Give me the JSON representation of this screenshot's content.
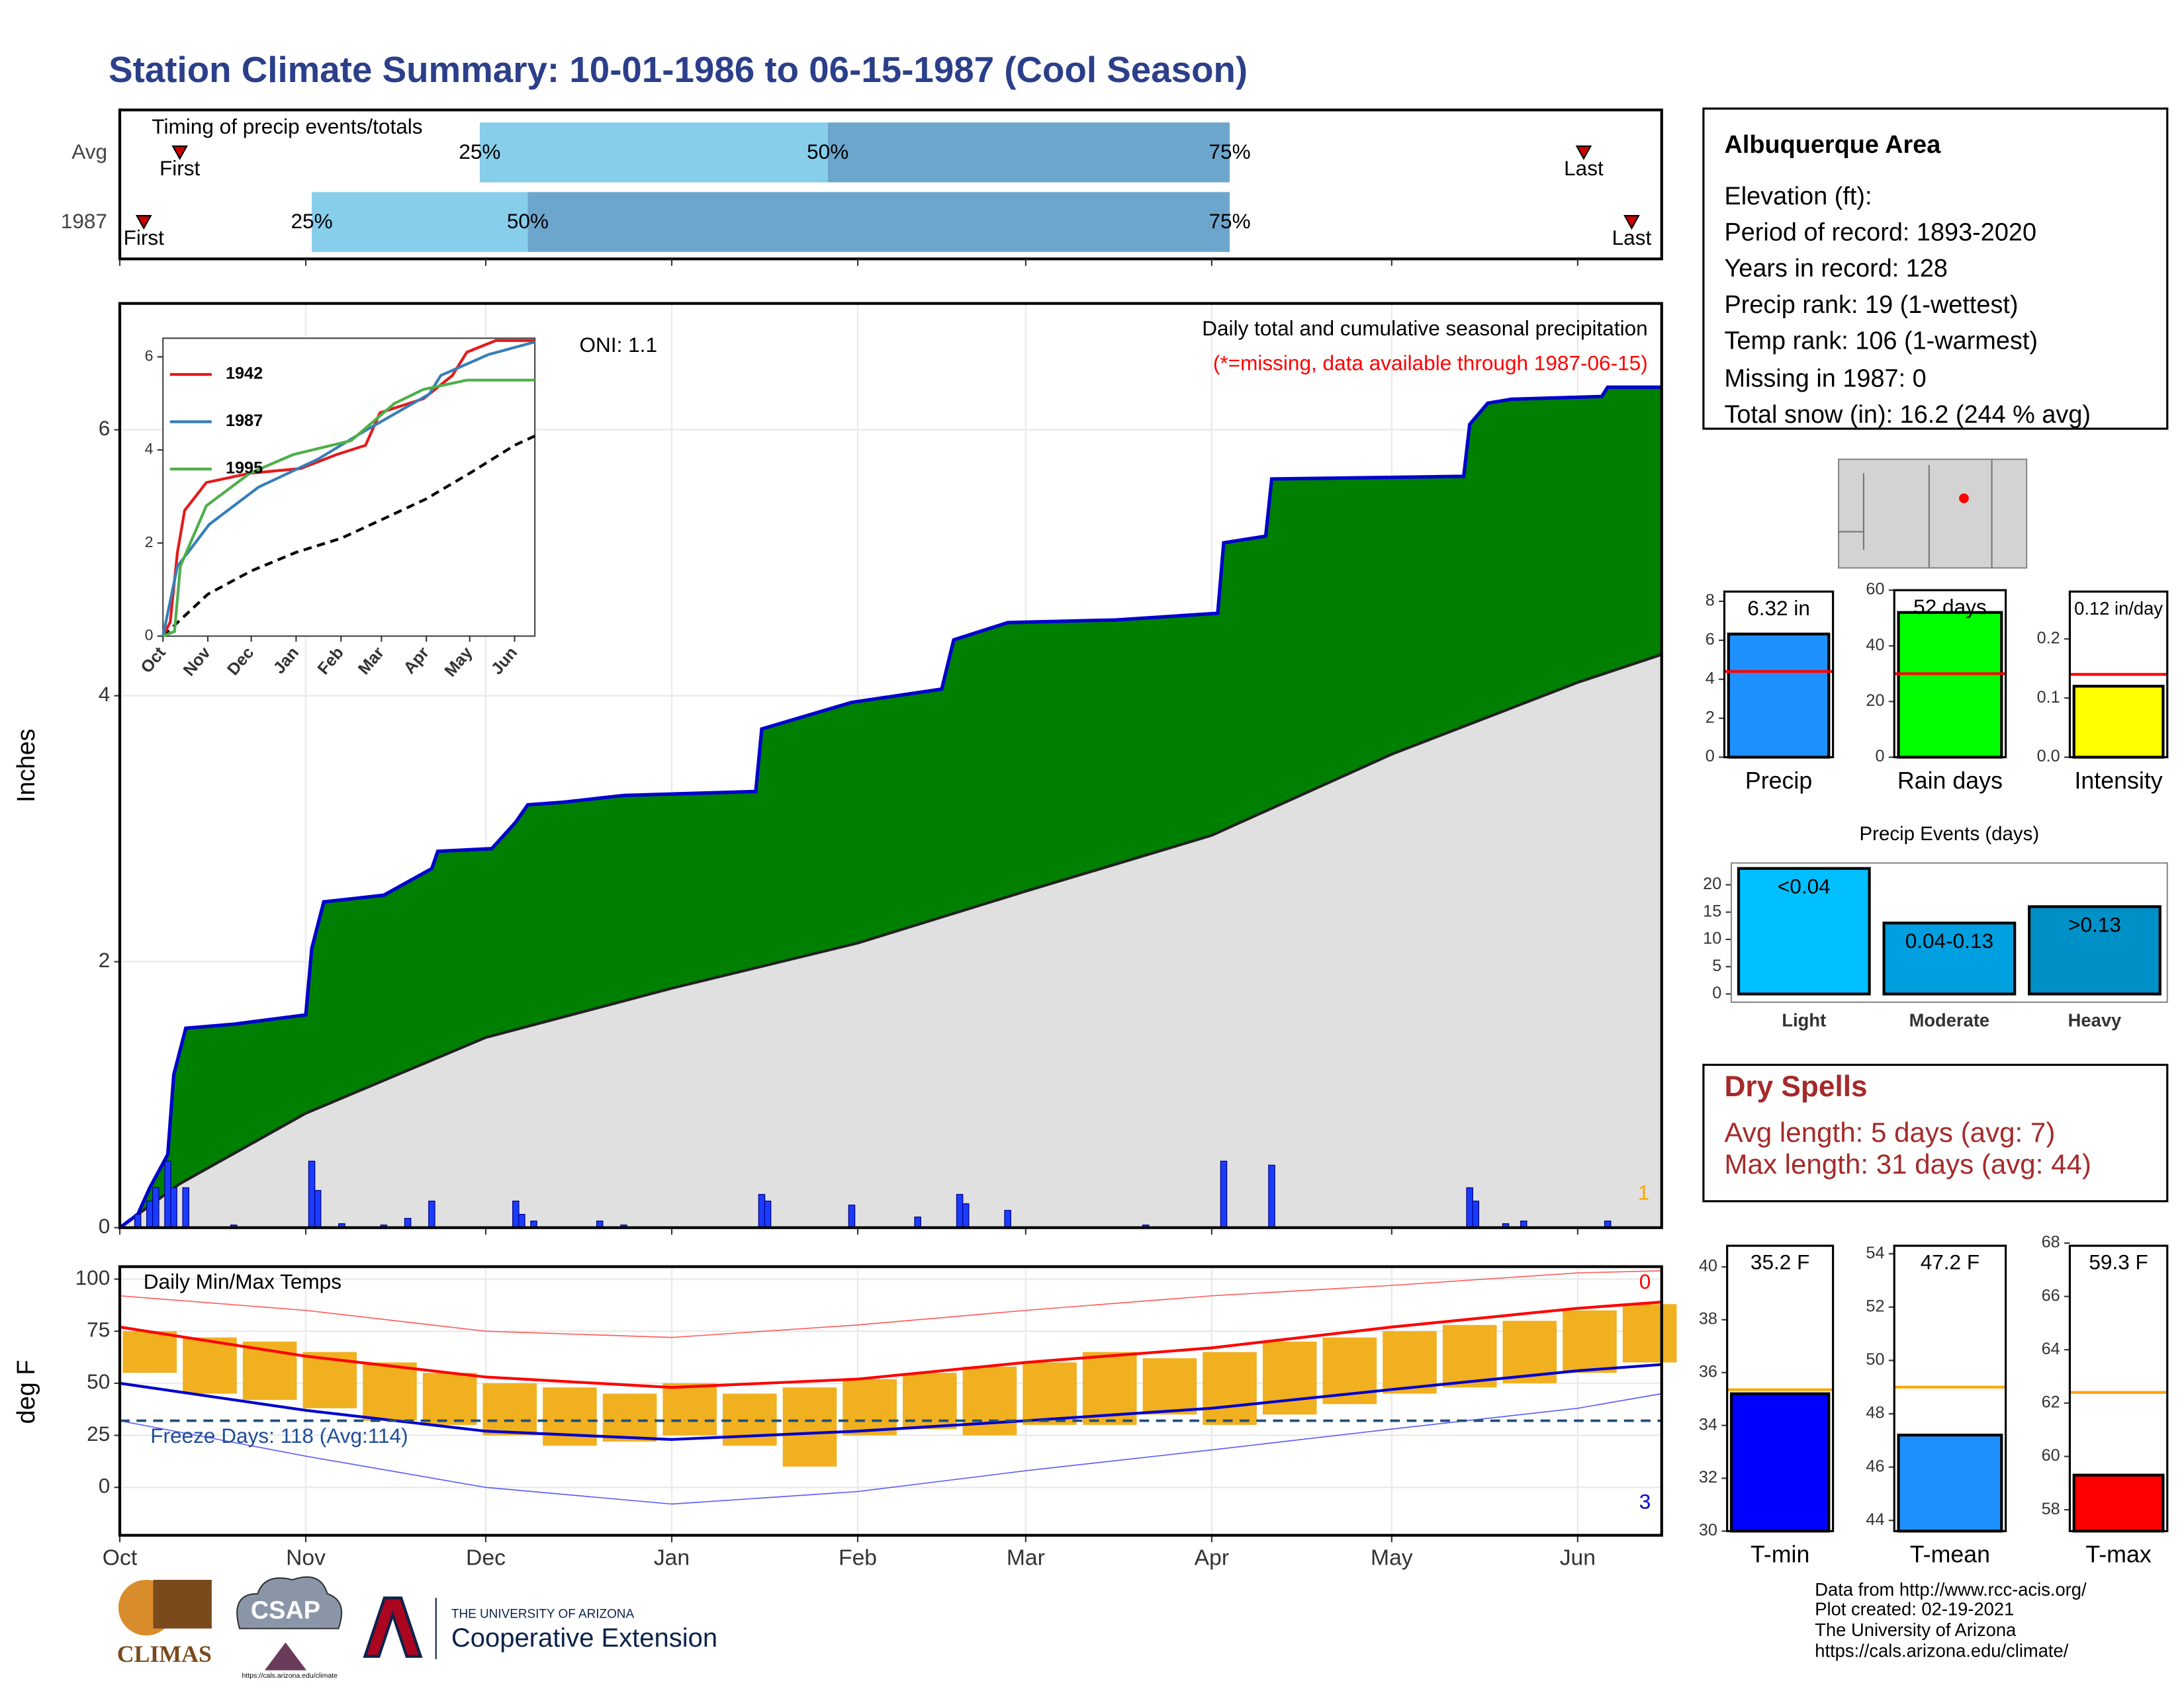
{
  "title": "Station Climate Summary: 10-01-1986 to 06-15-1987 (Cool Season)",
  "info": {
    "title": "Albuquerque Area",
    "lines": [
      "Elevation (ft):",
      "Period of record: 1893-2020",
      "Years in record: 128",
      "Precip rank: 19 (1-wettest)",
      "Temp rank: 106 (1-warmest)",
      "Missing in 1987: 0",
      "Total snow (in): 16.2 (244 % avg)"
    ]
  },
  "dry_spells": {
    "title": "Dry Spells",
    "lines": [
      "Avg length: 5 days (avg: 7)",
      "Max length: 31 days (avg: 44)"
    ]
  },
  "footer": {
    "credits": [
      "Data from http://www.rcc-acis.org/",
      "Plot created: 02-19-2021",
      "The University of Arizona",
      "https://cals.arizona.edu/climate/"
    ],
    "logos": [
      "CLIMAS",
      "CSAP",
      "https://cals.arizona.edu/climate",
      "THE UNIVERSITY OF ARIZONA",
      "Cooperative Extension"
    ]
  },
  "chart_data": [
    {
      "type": "timeline",
      "subtitle": "Timing of precip events/totals",
      "xlim": [
        0,
        257
      ],
      "xticks": [
        0,
        31,
        61,
        92,
        123,
        151,
        182,
        212,
        243
      ],
      "labels": {
        "first": "First",
        "q25": "25%",
        "q50": "50%",
        "q75": "75%",
        "last": "Last"
      },
      "colors": [
        "#87ceeb",
        "#6ca6cd"
      ],
      "marker_color": "#cc0000",
      "rows": [
        {
          "name": "Avg",
          "first": 10,
          "q25": 60,
          "q50": 118,
          "q75": 185,
          "last": 244
        },
        {
          "name": "1987",
          "first": 4,
          "q25": 32,
          "q50": 68,
          "q75": 185,
          "last": 252
        }
      ]
    },
    {
      "type": "area",
      "title": "Daily total and cumulative seasonal precipitation",
      "subtitle": "(*=missing, data available through 1987-06-15)",
      "annotations": [
        "ONI: 1.1",
        "1"
      ],
      "ylabel": "Inches",
      "grid": true,
      "xlim": [
        0,
        257
      ],
      "xticks": [
        0,
        31,
        61,
        92,
        123,
        151,
        182,
        212,
        243
      ],
      "ylim": [
        0,
        6.95
      ],
      "yticks": [
        0,
        2,
        4,
        6
      ],
      "cumulative": {
        "color": "#0000cd",
        "fill": "#008000",
        "x": [
          0,
          3,
          5,
          8,
          9,
          11,
          19,
          31,
          32,
          34,
          38,
          44,
          48,
          52,
          53,
          62,
          66,
          68,
          74,
          80,
          84,
          106,
          107,
          122,
          137,
          139,
          148,
          166,
          183,
          184,
          191,
          192,
          224,
          225,
          228,
          232,
          247,
          248,
          257
        ],
        "values": [
          0,
          0.1,
          0.3,
          0.55,
          1.15,
          1.5,
          1.53,
          1.6,
          2.1,
          2.45,
          2.47,
          2.5,
          2.6,
          2.7,
          2.83,
          2.85,
          3.05,
          3.18,
          3.2,
          3.23,
          3.25,
          3.28,
          3.75,
          3.95,
          4.05,
          4.42,
          4.55,
          4.57,
          4.62,
          5.15,
          5.2,
          5.63,
          5.65,
          6.04,
          6.2,
          6.23,
          6.25,
          6.32,
          6.32
        ]
      },
      "average": {
        "color": "#222222",
        "fill": "#e0e0e0",
        "x": [
          0,
          10,
          31,
          61,
          92,
          123,
          151,
          182,
          212,
          243,
          257
        ],
        "values": [
          0,
          0.33,
          0.86,
          1.43,
          1.8,
          2.14,
          2.53,
          2.95,
          3.56,
          4.1,
          4.31
        ]
      },
      "daily": {
        "color": "#1a3cff",
        "x": [
          3,
          5,
          6,
          8,
          9,
          11,
          19,
          32,
          33,
          37,
          44,
          48,
          52,
          66,
          67,
          69,
          80,
          84,
          107,
          108,
          122,
          133,
          140,
          141,
          148,
          171,
          184,
          192,
          225,
          226,
          231,
          234,
          248
        ],
        "values": [
          0.1,
          0.2,
          0.3,
          0.5,
          0.3,
          0.3,
          0.02,
          0.5,
          0.28,
          0.03,
          0.02,
          0.07,
          0.2,
          0.2,
          0.1,
          0.05,
          0.05,
          0.02,
          0.25,
          0.2,
          0.17,
          0.08,
          0.25,
          0.18,
          0.13,
          0.02,
          0.5,
          0.47,
          0.3,
          0.2,
          0.03,
          0.05,
          0.05
        ]
      }
    },
    {
      "type": "line",
      "xlim": [
        0,
        257
      ],
      "xticks": [
        {
          "value": 0,
          "label": "Oct"
        },
        {
          "value": 31,
          "label": "Nov"
        },
        {
          "value": 61,
          "label": "Dec"
        },
        {
          "value": 92,
          "label": "Jan"
        },
        {
          "value": 123,
          "label": "Feb"
        },
        {
          "value": 151,
          "label": "Mar"
        },
        {
          "value": 182,
          "label": "Apr"
        },
        {
          "value": 212,
          "label": "May"
        },
        {
          "value": 243,
          "label": "Jun"
        }
      ],
      "ylim": [
        0,
        6.4
      ],
      "yticks": [
        0,
        2,
        4,
        6
      ],
      "series": [
        {
          "name": "1942",
          "color": "#e41a1c",
          "x": [
            0,
            5,
            10,
            15,
            30,
            60,
            95,
            120,
            140,
            150,
            180,
            200,
            210,
            230,
            257
          ],
          "values": [
            0,
            0.3,
            1.8,
            2.7,
            3.3,
            3.5,
            3.6,
            3.9,
            4.1,
            4.8,
            5.1,
            5.6,
            6.1,
            6.35,
            6.35
          ]
        },
        {
          "name": "1987",
          "color": "#377eb8",
          "x": [
            0,
            10,
            32,
            66,
            107,
            139,
            184,
            192,
            225,
            257
          ],
          "values": [
            0,
            1.5,
            2.4,
            3.2,
            3.8,
            4.4,
            5.2,
            5.6,
            6.05,
            6.32
          ]
        },
        {
          "name": "1995",
          "color": "#4daf4a",
          "x": [
            0,
            8,
            12,
            30,
            60,
            90,
            130,
            160,
            180,
            210,
            257
          ],
          "values": [
            0,
            0.1,
            1.5,
            2.8,
            3.5,
            3.9,
            4.2,
            5.0,
            5.3,
            5.5,
            5.5
          ]
        }
      ],
      "average": {
        "color": "#000000",
        "x": [
          0,
          31,
          61,
          92,
          123,
          151,
          182,
          212,
          243,
          257
        ],
        "values": [
          0,
          0.9,
          1.4,
          1.8,
          2.1,
          2.5,
          2.95,
          3.5,
          4.1,
          4.3
        ]
      }
    },
    {
      "type": "temperature",
      "title": "Daily Min/Max Temps",
      "ylabel": "deg F",
      "annotations": [
        "Freeze Days: 118 (Avg:114)",
        "0",
        "3"
      ],
      "freeze": 32,
      "grid": true,
      "xlim": [
        0,
        257
      ],
      "xticks": [
        {
          "value": 0,
          "label": "Oct"
        },
        {
          "value": 31,
          "label": "Nov"
        },
        {
          "value": 61,
          "label": "Dec"
        },
        {
          "value": 92,
          "label": "Jan"
        },
        {
          "value": 123,
          "label": "Feb"
        },
        {
          "value": 151,
          "label": "Mar"
        },
        {
          "value": 182,
          "label": "Apr"
        },
        {
          "value": 212,
          "label": "May"
        },
        {
          "value": 243,
          "label": "Jun"
        }
      ],
      "ylim": [
        -23,
        106
      ],
      "yticks": [
        0,
        25,
        50,
        75,
        100
      ],
      "daily": {
        "color": "#f0b020",
        "x": [
          0,
          10,
          20,
          30,
          40,
          50,
          60,
          70,
          80,
          90,
          100,
          110,
          120,
          130,
          140,
          150,
          160,
          170,
          180,
          190,
          200,
          210,
          220,
          230,
          240,
          250
        ],
        "max": [
          75,
          72,
          70,
          65,
          60,
          55,
          50,
          48,
          45,
          50,
          45,
          48,
          52,
          55,
          58,
          60,
          65,
          62,
          65,
          70,
          72,
          75,
          78,
          80,
          85,
          88
        ],
        "min": [
          55,
          45,
          42,
          38,
          32,
          30,
          25,
          20,
          22,
          25,
          20,
          10,
          25,
          28,
          25,
          30,
          30,
          35,
          30,
          35,
          40,
          45,
          48,
          50,
          55,
          60
        ]
      },
      "normals": [
        {
          "color": "#ff6060",
          "width": 0.8,
          "x": [
            0,
            31,
            61,
            92,
            123,
            151,
            182,
            212,
            243,
            257
          ],
          "values": [
            92,
            85,
            75,
            72,
            78,
            85,
            92,
            97,
            103,
            104
          ]
        },
        {
          "color": "#6060ff",
          "width": 0.8,
          "x": [
            0,
            31,
            61,
            92,
            123,
            151,
            182,
            212,
            243,
            257
          ],
          "values": [
            32,
            15,
            0,
            -8,
            -2,
            8,
            18,
            28,
            38,
            45
          ]
        },
        {
          "color": "#ff0000",
          "width": 2,
          "x": [
            0,
            31,
            61,
            92,
            123,
            151,
            182,
            212,
            243,
            257
          ],
          "values": [
            77,
            63,
            53,
            48,
            52,
            60,
            67,
            77,
            86,
            89
          ]
        },
        {
          "color": "#0000cd",
          "width": 2,
          "x": [
            0,
            31,
            61,
            92,
            123,
            151,
            182,
            212,
            243,
            257
          ],
          "values": [
            50,
            37,
            27,
            23,
            27,
            32,
            38,
            47,
            56,
            59
          ]
        }
      ]
    },
    {
      "type": "bar",
      "categories": [
        "Precip"
      ],
      "values": [
        6.32
      ],
      "value_labels": [
        "6.32 in"
      ],
      "average": 4.4,
      "avg_color": "#ff0000",
      "color": "#1e90ff",
      "ylim": [
        0,
        8.5
      ],
      "yticks": [
        0,
        2,
        4,
        6,
        8
      ]
    },
    {
      "type": "bar",
      "categories": [
        "Rain days"
      ],
      "values": [
        52
      ],
      "value_labels": [
        "52 days"
      ],
      "average": 30,
      "avg_color": "#ff0000",
      "color": "#00ff00",
      "ylim": [
        0,
        60
      ],
      "yticks": [
        0,
        20,
        40,
        60
      ]
    },
    {
      "type": "bar",
      "categories": [
        "Intensity"
      ],
      "values": [
        0.12
      ],
      "value_labels": [
        "0.12 in/day"
      ],
      "average": 0.14,
      "avg_color": "#ff0000",
      "color": "#ffff00",
      "ylim": [
        0,
        0.28
      ],
      "yticks": [
        {
          "value": 0,
          "label": "0.0"
        },
        {
          "value": 0.1,
          "label": "0.1"
        },
        {
          "value": 0.2,
          "label": "0.2"
        }
      ]
    },
    {
      "type": "bar",
      "title": "Precip Events (days)",
      "categories": [
        "Light",
        "Moderate",
        "Heavy"
      ],
      "values": [
        23,
        13,
        16
      ],
      "bin_labels": [
        "<0.04",
        "0.04-0.13",
        ">0.13"
      ],
      "colors": [
        "#00bfff",
        "#009fdf",
        "#0090c8"
      ],
      "ylim": [
        -1.5,
        24
      ],
      "yticks": [
        0,
        5,
        10,
        15,
        20
      ]
    },
    {
      "type": "bar",
      "categories": [
        "T-min"
      ],
      "values": [
        35.2
      ],
      "value_labels": [
        "35.2 F"
      ],
      "average": 35.35,
      "avg_color": "#ffa500",
      "color": "#0000ff",
      "ylim": [
        30,
        40.8
      ],
      "yticks": [
        30,
        32,
        34,
        36,
        38,
        40
      ]
    },
    {
      "type": "bar",
      "categories": [
        "T-mean"
      ],
      "values": [
        47.2
      ],
      "value_labels": [
        "47.2 F"
      ],
      "average": 49,
      "avg_color": "#ffa500",
      "color": "#1e90ff",
      "ylim": [
        43.6,
        54.3
      ],
      "yticks": [
        44,
        46,
        48,
        50,
        52,
        54
      ]
    },
    {
      "type": "bar",
      "categories": [
        "T-max"
      ],
      "values": [
        59.3
      ],
      "value_labels": [
        "59.3 F"
      ],
      "average": 62.4,
      "avg_color": "#ffa500",
      "color": "#ff0000",
      "ylim": [
        57.2,
        67.9
      ],
      "yticks": [
        58,
        60,
        62,
        64,
        66,
        68
      ]
    }
  ]
}
